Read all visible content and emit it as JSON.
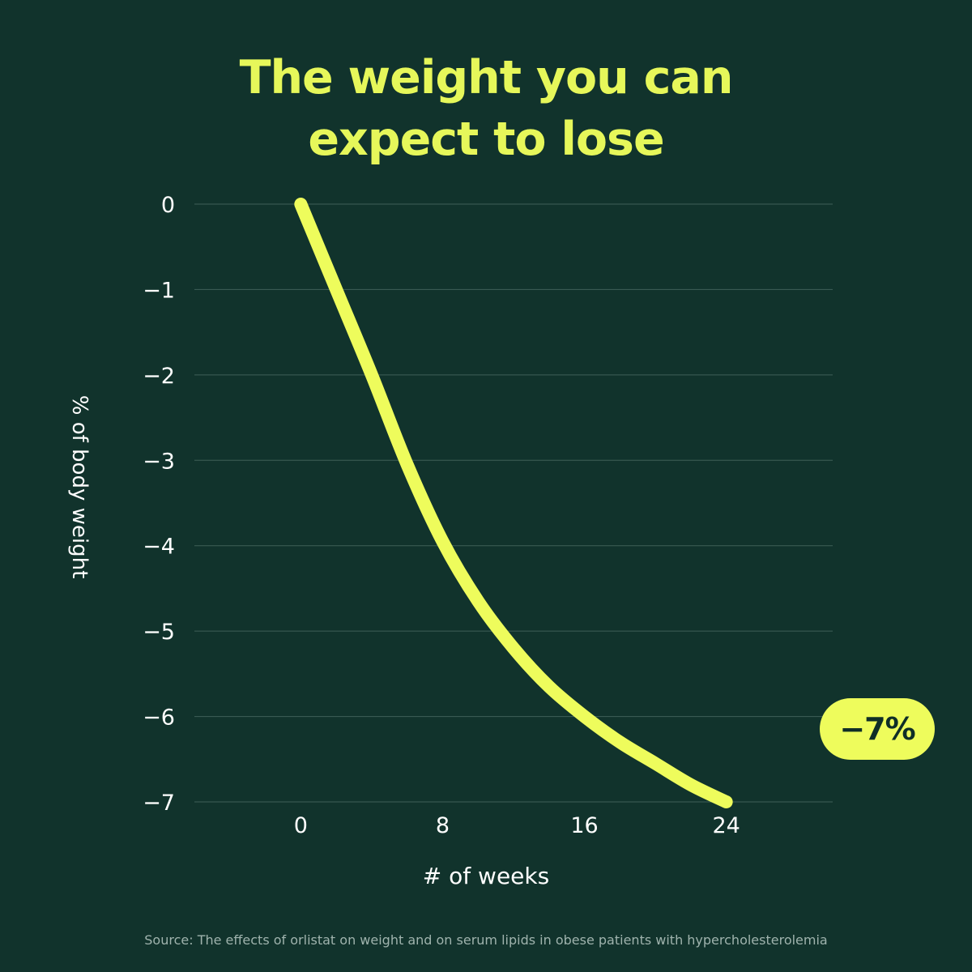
{
  "title_line1": "The weight you can",
  "title_line2": "expect to lose",
  "badge": "−7%",
  "source": "Source: The effects of orlistat on weight and on serum lipids in obese patients with hypercholesterolemia",
  "colors": {
    "background": "#11332c",
    "accent": "#eefc5c",
    "gridline": "#3f5f57",
    "text": "#ffffff"
  },
  "chart_data": {
    "type": "line",
    "xlabel": "# of weeks",
    "ylabel": "% of body weight",
    "xlim": [
      -6,
      30
    ],
    "ylim": [
      -7,
      0
    ],
    "x_ticks": [
      0,
      8,
      16,
      24
    ],
    "x_tick_labels": [
      "0",
      "8",
      "16",
      "24"
    ],
    "y_ticks": [
      0,
      -1,
      -2,
      -3,
      -4,
      -5,
      -6,
      -7
    ],
    "y_tick_labels": [
      "0",
      "−1",
      "−2",
      "−3",
      "−4",
      "−5",
      "−6",
      "−7"
    ],
    "grid": true,
    "series": [
      {
        "x": [
          0,
          2,
          4,
          6,
          8,
          10,
          12,
          14,
          16,
          18,
          20,
          22,
          24
        ],
        "y": [
          0,
          -1.0,
          -2.0,
          -3.05,
          -3.95,
          -4.65,
          -5.2,
          -5.65,
          -6.0,
          -6.3,
          -6.55,
          -6.8,
          -7.0
        ]
      }
    ],
    "end_label": "−7%"
  }
}
